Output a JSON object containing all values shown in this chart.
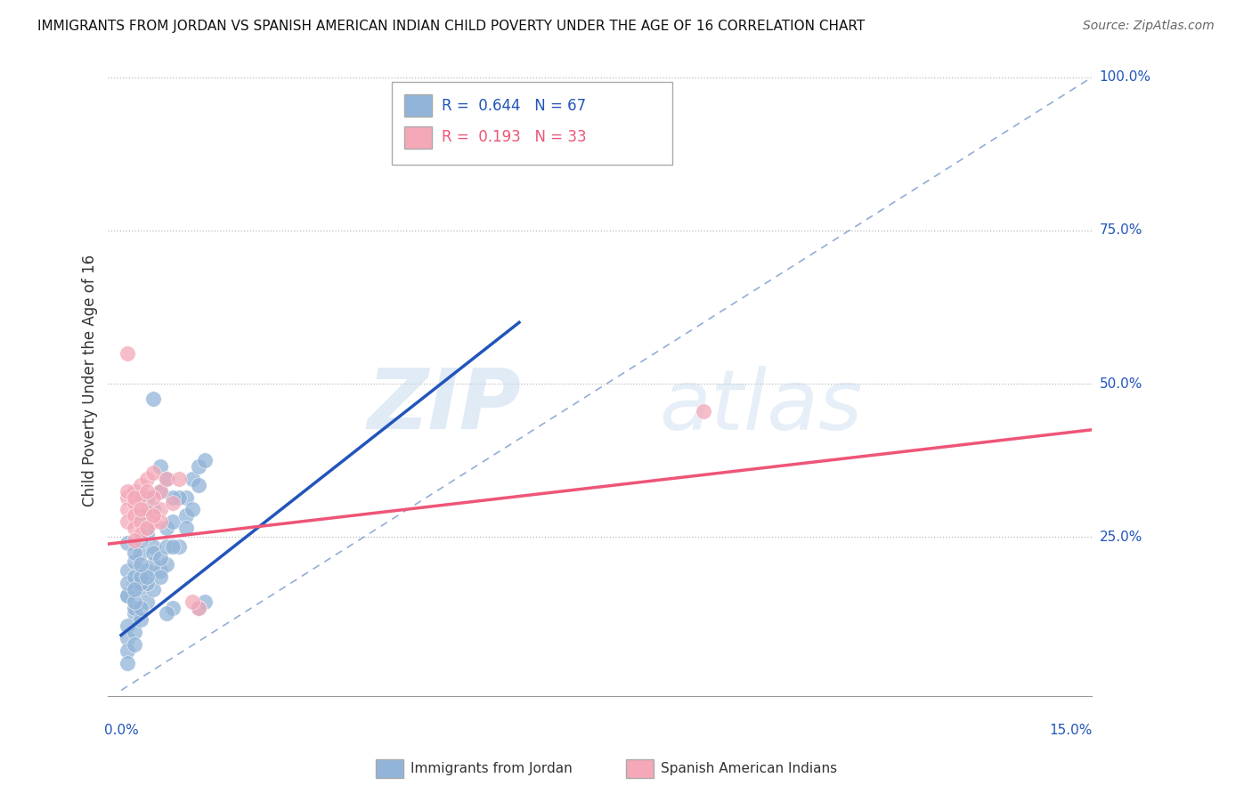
{
  "title": "IMMIGRANTS FROM JORDAN VS SPANISH AMERICAN INDIAN CHILD POVERTY UNDER THE AGE OF 16 CORRELATION CHART",
  "source": "Source: ZipAtlas.com",
  "ylabel": "Child Poverty Under the Age of 16",
  "legend_blue_r": "R =  0.644",
  "legend_blue_n": "N = 67",
  "legend_pink_r": "R =  0.193",
  "legend_pink_n": "N = 33",
  "legend_label_blue": "Immigrants from Jordan",
  "legend_label_pink": "Spanish American Indians",
  "blue_color": "#92B4D8",
  "pink_color": "#F4A8B8",
  "blue_line_color": "#2255BB",
  "pink_line_color": "#EE5577",
  "diag_line_color": "#7799CC",
  "blue_scatter": [
    [
      0.001,
      0.195
    ],
    [
      0.002,
      0.21
    ],
    [
      0.001,
      0.155
    ],
    [
      0.003,
      0.225
    ],
    [
      0.002,
      0.175
    ],
    [
      0.001,
      0.24
    ],
    [
      0.004,
      0.195
    ],
    [
      0.003,
      0.165
    ],
    [
      0.002,
      0.125
    ],
    [
      0.001,
      0.105
    ],
    [
      0.005,
      0.235
    ],
    [
      0.004,
      0.255
    ],
    [
      0.003,
      0.285
    ],
    [
      0.002,
      0.135
    ],
    [
      0.001,
      0.085
    ],
    [
      0.001,
      0.065
    ],
    [
      0.002,
      0.095
    ],
    [
      0.003,
      0.115
    ],
    [
      0.004,
      0.145
    ],
    [
      0.005,
      0.165
    ],
    [
      0.006,
      0.195
    ],
    [
      0.007,
      0.205
    ],
    [
      0.001,
      0.045
    ],
    [
      0.002,
      0.075
    ],
    [
      0.003,
      0.135
    ],
    [
      0.004,
      0.175
    ],
    [
      0.005,
      0.205
    ],
    [
      0.001,
      0.155
    ],
    [
      0.001,
      0.175
    ],
    [
      0.002,
      0.185
    ],
    [
      0.002,
      0.145
    ],
    [
      0.003,
      0.175
    ],
    [
      0.003,
      0.185
    ],
    [
      0.002,
      0.225
    ],
    [
      0.003,
      0.245
    ],
    [
      0.004,
      0.265
    ],
    [
      0.005,
      0.225
    ],
    [
      0.005,
      0.295
    ],
    [
      0.006,
      0.185
    ],
    [
      0.004,
      0.185
    ],
    [
      0.003,
      0.205
    ],
    [
      0.002,
      0.165
    ],
    [
      0.006,
      0.215
    ],
    [
      0.007,
      0.265
    ],
    [
      0.007,
      0.235
    ],
    [
      0.008,
      0.275
    ],
    [
      0.009,
      0.235
    ],
    [
      0.01,
      0.315
    ],
    [
      0.008,
      0.235
    ],
    [
      0.009,
      0.315
    ],
    [
      0.01,
      0.285
    ],
    [
      0.011,
      0.345
    ],
    [
      0.01,
      0.265
    ],
    [
      0.012,
      0.365
    ],
    [
      0.011,
      0.295
    ],
    [
      0.012,
      0.335
    ],
    [
      0.013,
      0.375
    ],
    [
      0.004,
      0.315
    ],
    [
      0.005,
      0.475
    ],
    [
      0.006,
      0.365
    ],
    [
      0.006,
      0.325
    ],
    [
      0.007,
      0.345
    ],
    [
      0.008,
      0.315
    ],
    [
      0.013,
      0.145
    ],
    [
      0.012,
      0.135
    ],
    [
      0.008,
      0.135
    ],
    [
      0.007,
      0.125
    ]
  ],
  "pink_scatter": [
    [
      0.001,
      0.55
    ],
    [
      0.001,
      0.315
    ],
    [
      0.001,
      0.295
    ],
    [
      0.001,
      0.275
    ],
    [
      0.002,
      0.325
    ],
    [
      0.002,
      0.305
    ],
    [
      0.002,
      0.285
    ],
    [
      0.002,
      0.265
    ],
    [
      0.003,
      0.335
    ],
    [
      0.003,
      0.315
    ],
    [
      0.003,
      0.275
    ],
    [
      0.004,
      0.345
    ],
    [
      0.004,
      0.295
    ],
    [
      0.005,
      0.355
    ],
    [
      0.005,
      0.275
    ],
    [
      0.006,
      0.325
    ],
    [
      0.006,
      0.295
    ],
    [
      0.007,
      0.345
    ],
    [
      0.008,
      0.305
    ],
    [
      0.009,
      0.345
    ],
    [
      0.003,
      0.255
    ],
    [
      0.002,
      0.245
    ],
    [
      0.001,
      0.325
    ],
    [
      0.002,
      0.315
    ],
    [
      0.003,
      0.295
    ],
    [
      0.004,
      0.265
    ],
    [
      0.005,
      0.315
    ],
    [
      0.006,
      0.275
    ],
    [
      0.004,
      0.325
    ],
    [
      0.005,
      0.285
    ],
    [
      0.09,
      0.455
    ],
    [
      0.012,
      0.135
    ],
    [
      0.011,
      0.145
    ]
  ],
  "blue_line_x": [
    0.0,
    0.0615
  ],
  "blue_line_y": [
    0.09,
    0.6
  ],
  "pink_line_x": [
    -0.005,
    0.15
  ],
  "pink_line_y": [
    0.235,
    0.425
  ],
  "diag_line_x": [
    0.0,
    0.15
  ],
  "diag_line_y": [
    0.0,
    1.0
  ],
  "watermark_zip": "ZIP",
  "watermark_atlas": "atlas",
  "xlim": [
    -0.002,
    0.15
  ],
  "ylim": [
    -0.01,
    1.02
  ],
  "ytick_vals": [
    0.25,
    0.5,
    0.75,
    1.0
  ],
  "ytick_labels": [
    "25.0%",
    "50.0%",
    "75.0%",
    "100.0%"
  ]
}
